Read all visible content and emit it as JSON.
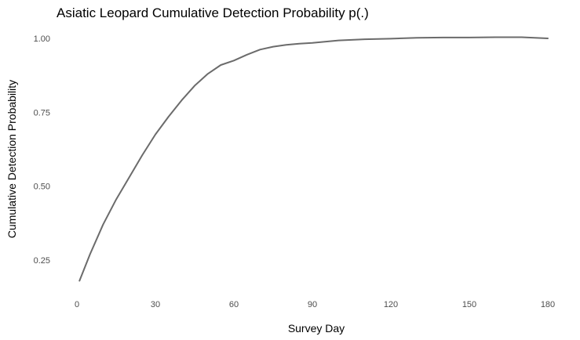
{
  "chart_data": {
    "type": "line",
    "title": "Asiatic Leopard Cumulative Detection Probability p(.)",
    "xlabel": "Survey Day",
    "ylabel": "Cumulative Detection Probability",
    "xlim": [
      0,
      180
    ],
    "ylim": [
      0.17,
      1.0
    ],
    "x_ticks": [
      0,
      30,
      60,
      90,
      120,
      150,
      180
    ],
    "x_tick_labels": [
      "0",
      "30",
      "60",
      "90",
      "120",
      "150",
      "180"
    ],
    "y_ticks": [
      0.25,
      0.5,
      0.75,
      1.0
    ],
    "y_tick_labels": [
      "0.25",
      "0.50",
      "0.75",
      "1.00"
    ],
    "grid": false,
    "line_color": "#6b6b6b",
    "series": [
      {
        "x": [
          1,
          5,
          10,
          15,
          20,
          25,
          30,
          35,
          40,
          45,
          50,
          55,
          60,
          65,
          70,
          75,
          80,
          85,
          90,
          100,
          110,
          120,
          130,
          140,
          150,
          160,
          170,
          180
        ],
        "y": [
          0.18,
          0.27,
          0.37,
          0.455,
          0.53,
          0.605,
          0.675,
          0.735,
          0.79,
          0.84,
          0.88,
          0.91,
          0.925,
          0.945,
          0.962,
          0.972,
          0.978,
          0.982,
          0.985,
          0.993,
          0.997,
          0.999,
          1.002,
          1.003,
          1.003,
          1.004,
          1.004,
          1.0
        ]
      }
    ]
  }
}
